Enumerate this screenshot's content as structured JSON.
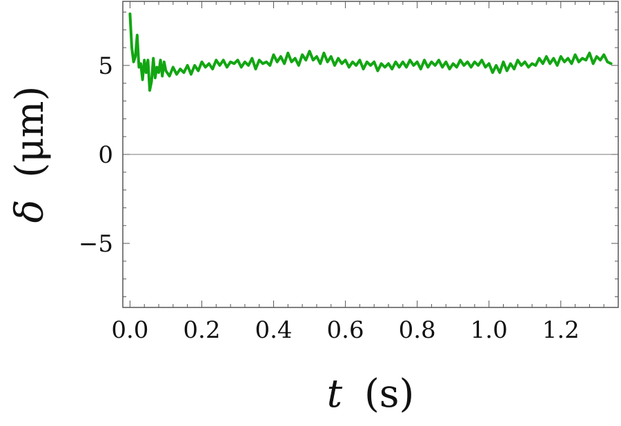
{
  "chart_data": {
    "type": "line",
    "title": "",
    "xlabel_symbol": "t",
    "xlabel_unit": "(s)",
    "ylabel_symbol": "δ",
    "ylabel_unit": "(μm)",
    "xlim": [
      -0.02,
      1.36
    ],
    "ylim": [
      -8.6,
      8.6
    ],
    "x_ticks": [
      0.0,
      0.2,
      0.4,
      0.6,
      0.8,
      1.0,
      1.2
    ],
    "x_tick_labels": [
      "0.0",
      "0.2",
      "0.4",
      "0.6",
      "0.8",
      "1.0",
      "1.2"
    ],
    "y_ticks": [
      -5,
      0,
      5
    ],
    "y_tick_labels": [
      "−5",
      "0",
      "5"
    ],
    "zero_line": true,
    "grid": false,
    "legend": "none",
    "colors": {
      "series": "#12a612",
      "axis": "#555555",
      "zero_line": "#777777"
    },
    "series": [
      {
        "x": [
          0.0,
          0.005,
          0.01,
          0.015,
          0.02,
          0.025,
          0.03,
          0.035,
          0.04,
          0.045,
          0.05,
          0.055,
          0.06,
          0.065,
          0.07,
          0.075,
          0.08,
          0.085,
          0.09,
          0.095,
          0.1,
          0.11,
          0.12,
          0.13,
          0.14,
          0.15,
          0.16,
          0.17,
          0.18,
          0.19,
          0.2,
          0.21,
          0.22,
          0.23,
          0.24,
          0.25,
          0.26,
          0.27,
          0.28,
          0.29,
          0.3,
          0.31,
          0.32,
          0.33,
          0.34,
          0.35,
          0.36,
          0.37,
          0.38,
          0.39,
          0.4,
          0.41,
          0.42,
          0.43,
          0.44,
          0.45,
          0.46,
          0.47,
          0.48,
          0.49,
          0.5,
          0.51,
          0.52,
          0.53,
          0.54,
          0.55,
          0.56,
          0.57,
          0.58,
          0.59,
          0.6,
          0.61,
          0.62,
          0.63,
          0.64,
          0.65,
          0.66,
          0.67,
          0.68,
          0.69,
          0.7,
          0.71,
          0.72,
          0.73,
          0.74,
          0.75,
          0.76,
          0.77,
          0.78,
          0.79,
          0.8,
          0.81,
          0.82,
          0.83,
          0.84,
          0.85,
          0.86,
          0.87,
          0.88,
          0.89,
          0.9,
          0.91,
          0.92,
          0.93,
          0.94,
          0.95,
          0.96,
          0.97,
          0.98,
          0.99,
          1.0,
          1.01,
          1.02,
          1.03,
          1.04,
          1.05,
          1.06,
          1.07,
          1.08,
          1.09,
          1.1,
          1.11,
          1.12,
          1.13,
          1.14,
          1.15,
          1.16,
          1.17,
          1.18,
          1.19,
          1.2,
          1.21,
          1.22,
          1.23,
          1.24,
          1.25,
          1.26,
          1.27,
          1.28,
          1.29,
          1.3,
          1.31,
          1.32,
          1.33,
          1.34
        ],
        "y": [
          7.9,
          6.0,
          5.2,
          5.5,
          6.7,
          4.9,
          5.1,
          4.2,
          5.3,
          4.6,
          5.3,
          3.6,
          4.1,
          5.4,
          4.3,
          4.9,
          4.6,
          5.3,
          4.4,
          5.2,
          4.7,
          4.4,
          4.9,
          4.5,
          4.8,
          4.6,
          5.0,
          4.5,
          5.0,
          4.7,
          5.2,
          4.9,
          5.1,
          4.8,
          5.3,
          5.0,
          5.3,
          4.9,
          5.2,
          5.1,
          5.3,
          4.9,
          5.2,
          5.0,
          5.4,
          4.8,
          5.3,
          5.1,
          5.2,
          5.0,
          5.6,
          5.2,
          5.5,
          5.1,
          5.7,
          5.2,
          5.4,
          5.0,
          5.6,
          5.3,
          5.8,
          5.3,
          5.5,
          5.1,
          5.7,
          5.2,
          5.5,
          5.0,
          5.4,
          5.1,
          5.3,
          4.9,
          5.2,
          5.0,
          5.3,
          4.8,
          5.2,
          5.0,
          5.2,
          4.7,
          5.1,
          4.9,
          5.1,
          4.8,
          5.2,
          4.9,
          5.2,
          4.9,
          5.3,
          5.0,
          5.2,
          4.8,
          5.3,
          4.9,
          5.2,
          5.0,
          5.3,
          4.9,
          5.2,
          4.8,
          5.1,
          4.9,
          5.3,
          5.0,
          5.2,
          4.9,
          5.2,
          5.0,
          5.3,
          4.9,
          5.1,
          4.6,
          5.0,
          4.6,
          5.2,
          4.7,
          5.1,
          4.8,
          5.3,
          5.0,
          5.2,
          4.9,
          5.1,
          5.0,
          5.4,
          5.1,
          5.5,
          5.1,
          5.4,
          5.0,
          5.5,
          5.2,
          5.4,
          5.1,
          5.6,
          5.2,
          5.4,
          5.3,
          5.7,
          5.1,
          5.5,
          5.3,
          5.6,
          5.2,
          5.1
        ]
      }
    ]
  }
}
